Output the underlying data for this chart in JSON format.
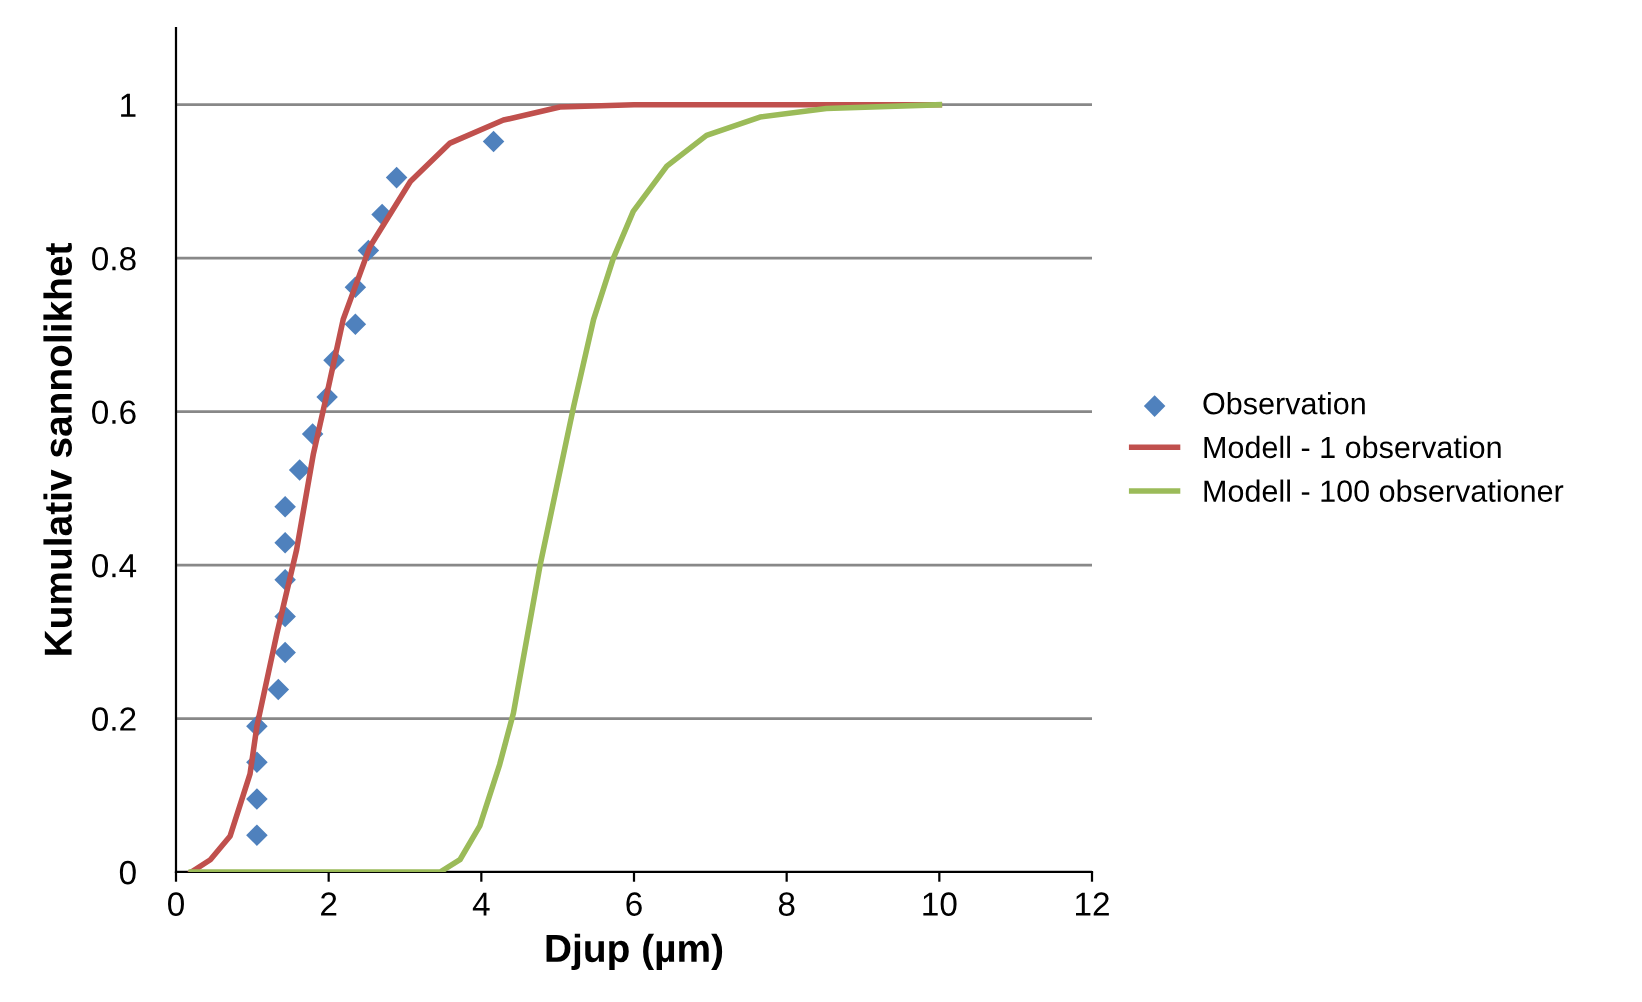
{
  "chart_data": {
    "type": "scatter",
    "xlabel": "Djup (µm)",
    "ylabel": "Kumulativ sannolikhet",
    "xlim": [
      0,
      12
    ],
    "xticks": [
      0,
      2,
      4,
      6,
      8,
      10,
      12
    ],
    "ylim": [
      0,
      1.1
    ],
    "yticks": [
      0,
      0.2,
      0.4,
      0.6,
      0.8,
      1
    ],
    "grid": "y",
    "legend": "right",
    "series": [
      {
        "name": "Observation",
        "marker": "diamond",
        "color": "#4f81bd",
        "x": [
          1.06,
          1.06,
          1.06,
          1.06,
          1.34,
          1.43,
          1.43,
          1.43,
          1.43,
          1.43,
          1.62,
          1.79,
          1.98,
          2.07,
          2.35,
          2.35,
          2.52,
          2.7,
          2.89,
          4.16
        ],
        "values": [
          0.048,
          0.095,
          0.143,
          0.19,
          0.238,
          0.286,
          0.333,
          0.381,
          0.429,
          0.476,
          0.524,
          0.571,
          0.619,
          0.667,
          0.714,
          0.762,
          0.81,
          0.857,
          0.905,
          0.952
        ]
      },
      {
        "name": "Modell - 1 observation",
        "type": "line",
        "marker": "none",
        "color": "#c0504d",
        "x": [
          0.2,
          0.45,
          0.71,
          0.97,
          1.06,
          1.32,
          1.58,
          1.8,
          1.97,
          2.19,
          2.54,
          3.07,
          3.59,
          4.29,
          5.03,
          6.0,
          8.0,
          10.0
        ],
        "values": [
          0,
          0.016,
          0.047,
          0.128,
          0.19,
          0.31,
          0.42,
          0.545,
          0.62,
          0.72,
          0.815,
          0.9,
          0.95,
          0.98,
          0.997,
          1.0,
          1.0,
          1.0
        ]
      },
      {
        "name": "Modell - 100 observationer",
        "type": "line",
        "marker": "none",
        "color": "#9bbb59",
        "x": [
          0.2,
          3.46,
          3.72,
          3.98,
          4.24,
          4.42,
          4.77,
          5.21,
          5.47,
          5.73,
          5.99,
          6.43,
          6.95,
          7.65,
          8.52,
          10.0
        ],
        "values": [
          0,
          0,
          0.016,
          0.06,
          0.14,
          0.207,
          0.4,
          0.607,
          0.72,
          0.8,
          0.861,
          0.92,
          0.96,
          0.984,
          0.995,
          1.0
        ]
      }
    ]
  }
}
